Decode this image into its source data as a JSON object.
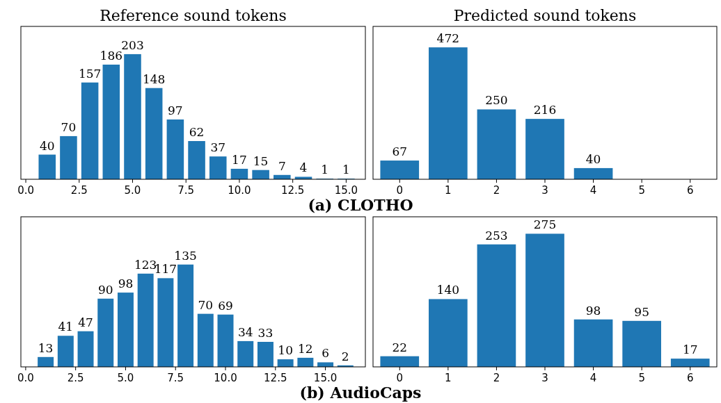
{
  "chart_data": [
    {
      "type": "bar",
      "title": "Reference sound tokens",
      "x": [
        1,
        2,
        3,
        4,
        5,
        6,
        7,
        8,
        9,
        10,
        11,
        12,
        13,
        14,
        15
      ],
      "values": [
        40,
        70,
        157,
        186,
        203,
        148,
        97,
        62,
        37,
        17,
        15,
        7,
        4,
        1,
        1
      ],
      "color": "#1f77b4",
      "xlim": [
        -0.23,
        15.9
      ],
      "xticks": [
        {
          "value": 0,
          "label": "0.0"
        },
        {
          "value": 2.5,
          "label": "2.5"
        },
        {
          "value": 5,
          "label": "5.0"
        },
        {
          "value": 7.5,
          "label": "7.5"
        },
        {
          "value": 10,
          "label": "10.0"
        },
        {
          "value": 12.5,
          "label": "12.5"
        },
        {
          "value": 15,
          "label": "15.0"
        }
      ],
      "ylim": [
        0,
        248
      ],
      "tick_labels": "x",
      "data_labels": true,
      "annotations": [
        "(a) CLOTHO"
      ]
    },
    {
      "type": "bar",
      "title": "Predicted sound tokens",
      "categories": [
        "0",
        "1",
        "2",
        "3",
        "4",
        "5",
        "6"
      ],
      "values": [
        67,
        472,
        250,
        216,
        40,
        null,
        null
      ],
      "color": "#1f77b4",
      "ylim": [
        0,
        547
      ],
      "tick_labels": "x",
      "data_labels": true
    },
    {
      "type": "bar",
      "x": [
        1,
        2,
        3,
        4,
        5,
        6,
        7,
        8,
        9,
        10,
        11,
        12,
        13,
        14,
        15,
        16
      ],
      "values": [
        13,
        41,
        47,
        90,
        98,
        123,
        117,
        135,
        70,
        69,
        34,
        33,
        10,
        12,
        6,
        2
      ],
      "color": "#1f77b4",
      "xlim": [
        -0.24,
        17.0
      ],
      "xticks": [
        {
          "value": 0,
          "label": "0.0"
        },
        {
          "value": 2.5,
          "label": "2.5"
        },
        {
          "value": 5,
          "label": "5.0"
        },
        {
          "value": 7.5,
          "label": "7.5"
        },
        {
          "value": 10,
          "label": "10.0"
        },
        {
          "value": 12.5,
          "label": "12.5"
        },
        {
          "value": 15,
          "label": "15.0"
        }
      ],
      "ylim": [
        0,
        198
      ],
      "tick_labels": "x",
      "data_labels": true,
      "annotations": [
        "(b) AudioCaps"
      ]
    },
    {
      "type": "bar",
      "categories": [
        "0",
        "1",
        "2",
        "3",
        "4",
        "5",
        "6"
      ],
      "values": [
        22,
        140,
        253,
        275,
        98,
        95,
        17
      ],
      "color": "#1f77b4",
      "ylim": [
        0,
        310
      ],
      "tick_labels": "x",
      "data_labels": true
    }
  ]
}
